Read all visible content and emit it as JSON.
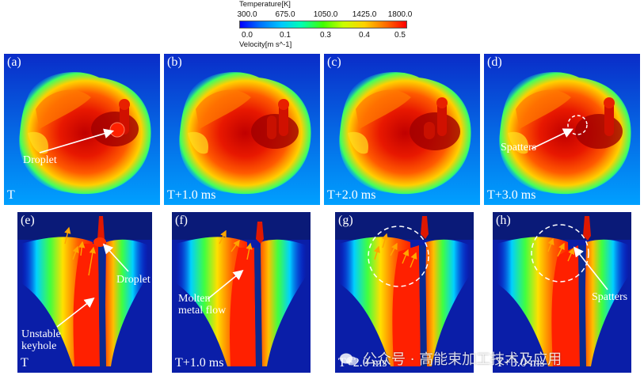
{
  "legend": {
    "temperature_title": "Temperature[K]",
    "temperature_ticks": [
      "300.0",
      "675.0",
      "1050.0",
      "1425.0",
      "1800.0"
    ],
    "velocity_ticks": [
      "0.0",
      "0.1",
      "0.3",
      "0.4",
      "0.5"
    ],
    "velocity_title": "Velocity[m s^-1]"
  },
  "top_panels": [
    {
      "id": "(a)",
      "time": "T",
      "annotation": "Droplet"
    },
    {
      "id": "(b)",
      "time": "T+1.0 ms",
      "annotation": ""
    },
    {
      "id": "(c)",
      "time": "T+2.0 ms",
      "annotation": ""
    },
    {
      "id": "(d)",
      "time": "T+3.0 ms",
      "annotation": "Spatters"
    }
  ],
  "bottom_panels": [
    {
      "id": "(e)",
      "time": "T",
      "annotations": [
        "Droplet",
        "Unstable keyhole"
      ]
    },
    {
      "id": "(f)",
      "time": "T+1.0 ms",
      "annotations": [
        "Molten metal flow"
      ]
    },
    {
      "id": "(g)",
      "time": "T+2.0 ms",
      "annotations": []
    },
    {
      "id": "(h)",
      "time": "T+3.0 ms",
      "annotations": [
        "Spatters"
      ]
    }
  ],
  "annotation_lines": {
    "e_unstable": [
      "Unstable",
      "keyhole"
    ],
    "f_molten": [
      "Molten",
      "metal flow"
    ]
  },
  "watermark": "公众号 · 高能束加工技术及应用",
  "colors": {
    "background_blue": "#0a1a78",
    "hot": "#ff2000",
    "accent_arrow": "#ffa500"
  }
}
